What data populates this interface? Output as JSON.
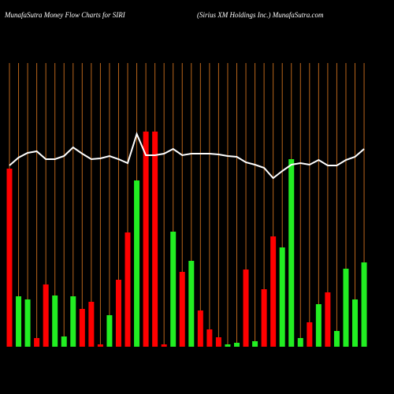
{
  "chart_data": {
    "type": "bar",
    "title": "MunafaSutra  Money Flow  Charts for SIRI",
    "subtitle": "(Sirius XM Holdings Inc.) MunafaSutra.com",
    "categories": [
      null,
      null,
      null,
      null,
      null,
      null,
      null,
      null,
      null,
      null,
      null,
      null,
      null,
      null,
      null,
      null,
      null,
      null,
      null,
      null,
      null,
      null,
      null,
      null,
      null,
      null,
      null,
      null,
      null,
      null,
      null,
      null,
      null,
      null,
      null,
      null,
      null,
      null,
      null,
      null
    ],
    "values": [
      226,
      64,
      60,
      11,
      79,
      65,
      13,
      64,
      48,
      57,
      3,
      40,
      85,
      145,
      211,
      273,
      273,
      3,
      146,
      95,
      109,
      46,
      22,
      12,
      3,
      5,
      98,
      7,
      73,
      140,
      126,
      238,
      11,
      31,
      54,
      69,
      20,
      99,
      60,
      107
    ],
    "bar_colors": [
      "#ff0000",
      "#22ee22",
      "#22ee22",
      "#ff0000",
      "#ff0000",
      "#22ee22",
      "#22ee22",
      "#22ee22",
      "#ff0000",
      "#ff0000",
      "#ff0000",
      "#22ee22",
      "#ff0000",
      "#ff0000",
      "#22ee22",
      "#ff0000",
      "#ff0000",
      "#ff0000",
      "#22ee22",
      "#ff0000",
      "#22ee22",
      "#ff0000",
      "#ff0000",
      "#ff0000",
      "#22ee22",
      "#22ee22",
      "#ff0000",
      "#22ee22",
      "#ff0000",
      "#ff0000",
      "#22ee22",
      "#22ee22",
      "#22ee22",
      "#ff0000",
      "#22ee22",
      "#ff0000",
      "#22ee22",
      "#22ee22",
      "#22ee22",
      "#22ee22"
    ],
    "line": {
      "color": "#ffffff",
      "values": [
        230,
        240,
        246,
        248,
        238,
        238,
        242,
        253,
        245,
        238,
        239,
        242,
        238,
        233,
        270,
        243,
        243,
        245,
        251,
        243,
        245,
        245,
        245,
        244,
        242,
        241,
        234,
        231,
        227,
        214,
        223,
        231,
        233,
        231,
        237,
        230,
        230,
        237,
        241,
        251
      ]
    },
    "ylim": [
      0,
      360
    ],
    "grid_color": "#b8651b"
  }
}
